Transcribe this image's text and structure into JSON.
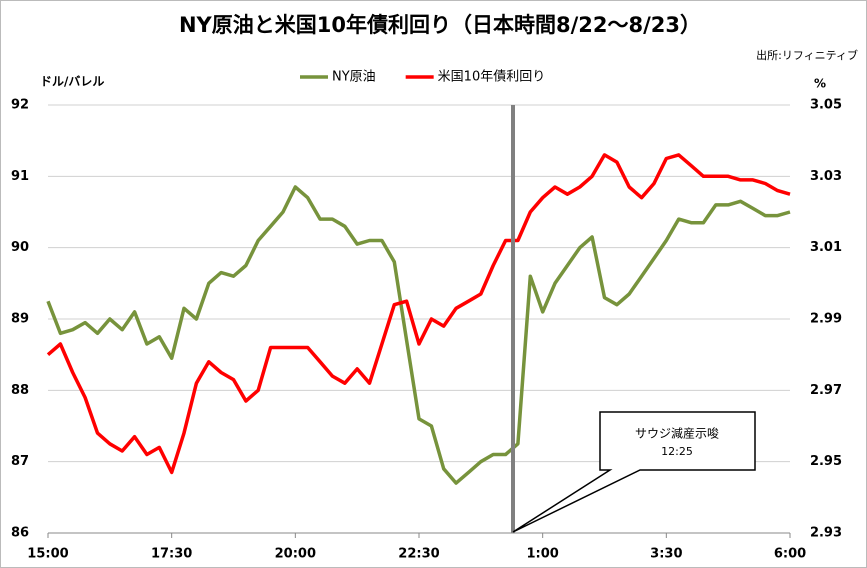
{
  "chart_data": {
    "type": "line",
    "title": "NY原油と米国10年債利回り（日本時間8/22～8/23）",
    "source": "出所:リフィニティブ",
    "y_label": "ドル/バレル",
    "y2_label": "%",
    "annotation": {
      "text": "サウジ減産示唆",
      "time": "12:25"
    },
    "x": [
      0,
      0.25,
      0.5,
      0.75,
      1,
      1.25,
      1.5,
      1.75,
      2,
      2.25,
      2.5,
      2.75,
      3,
      3.25,
      3.5,
      3.75,
      4,
      4.25,
      4.5,
      4.75,
      5,
      5.25,
      5.5,
      5.75,
      6,
      6.25,
      6.5,
      6.75,
      7,
      7.25,
      7.5,
      7.75,
      8,
      8.25,
      8.5,
      8.75,
      9,
      9.25,
      9.5,
      9.75,
      10,
      10.25,
      10.5,
      10.75,
      11,
      11.25,
      11.5,
      11.75,
      12,
      12.25,
      12.5,
      12.75,
      13,
      13.25,
      13.5,
      13.75,
      14,
      14.25,
      14.5,
      14.75,
      15
    ],
    "xlim": [
      0,
      15
    ],
    "xticks": [
      {
        "value": 0,
        "label": "15:00"
      },
      {
        "value": 2.5,
        "label": "17:30"
      },
      {
        "value": 5,
        "label": "20:00"
      },
      {
        "value": 7.5,
        "label": "22:30"
      },
      {
        "value": 10,
        "label": "1:00"
      },
      {
        "value": 12.5,
        "label": "3:30"
      },
      {
        "value": 15,
        "label": "6:00"
      }
    ],
    "ylim": [
      86,
      92
    ],
    "yticks": [
      86,
      87,
      88,
      89,
      90,
      91,
      92
    ],
    "y2lim": [
      2.93,
      3.05
    ],
    "y2ticks": [
      2.93,
      2.95,
      2.97,
      2.99,
      3.01,
      3.03,
      3.05
    ],
    "grid": true,
    "legend": "top",
    "series": [
      {
        "name": "NY原油",
        "color": "#77933c",
        "values": [
          89.25,
          88.8,
          88.85,
          88.95,
          88.8,
          89.0,
          88.85,
          89.1,
          88.65,
          88.75,
          88.45,
          89.15,
          89.0,
          89.5,
          89.65,
          89.6,
          89.75,
          90.1,
          90.3,
          90.5,
          90.85,
          90.7,
          90.4,
          90.4,
          90.3,
          90.05,
          90.1,
          90.1,
          89.8,
          88.7,
          87.6,
          87.5,
          86.9,
          86.7,
          86.85,
          87.0,
          87.1,
          87.1,
          87.25,
          89.6,
          89.1,
          89.5,
          89.75,
          90.0,
          90.15,
          89.3,
          89.2,
          89.35,
          89.6,
          89.85,
          90.1,
          90.4,
          90.35,
          90.35,
          90.6,
          90.6,
          90.65,
          90.55,
          90.45,
          90.45,
          90.5
        ]
      },
      {
        "name": "米国10年債利回り",
        "color": "#ff0000",
        "axis": "y2",
        "values": [
          2.98,
          2.983,
          2.975,
          2.968,
          2.958,
          2.955,
          2.953,
          2.957,
          2.952,
          2.954,
          2.947,
          2.958,
          2.972,
          2.978,
          2.975,
          2.973,
          2.967,
          2.97,
          2.982,
          2.982,
          2.982,
          2.982,
          2.978,
          2.974,
          2.972,
          2.976,
          2.972,
          2.983,
          2.994,
          2.995,
          2.983,
          2.99,
          2.988,
          2.993,
          2.995,
          2.997,
          3.005,
          3.012,
          3.012,
          3.02,
          3.024,
          3.027,
          3.025,
          3.027,
          3.03,
          3.036,
          3.034,
          3.027,
          3.024,
          3.028,
          3.035,
          3.036,
          3.033,
          3.03,
          3.03,
          3.03,
          3.029,
          3.029,
          3.028,
          3.026,
          3.025
        ]
      }
    ]
  }
}
